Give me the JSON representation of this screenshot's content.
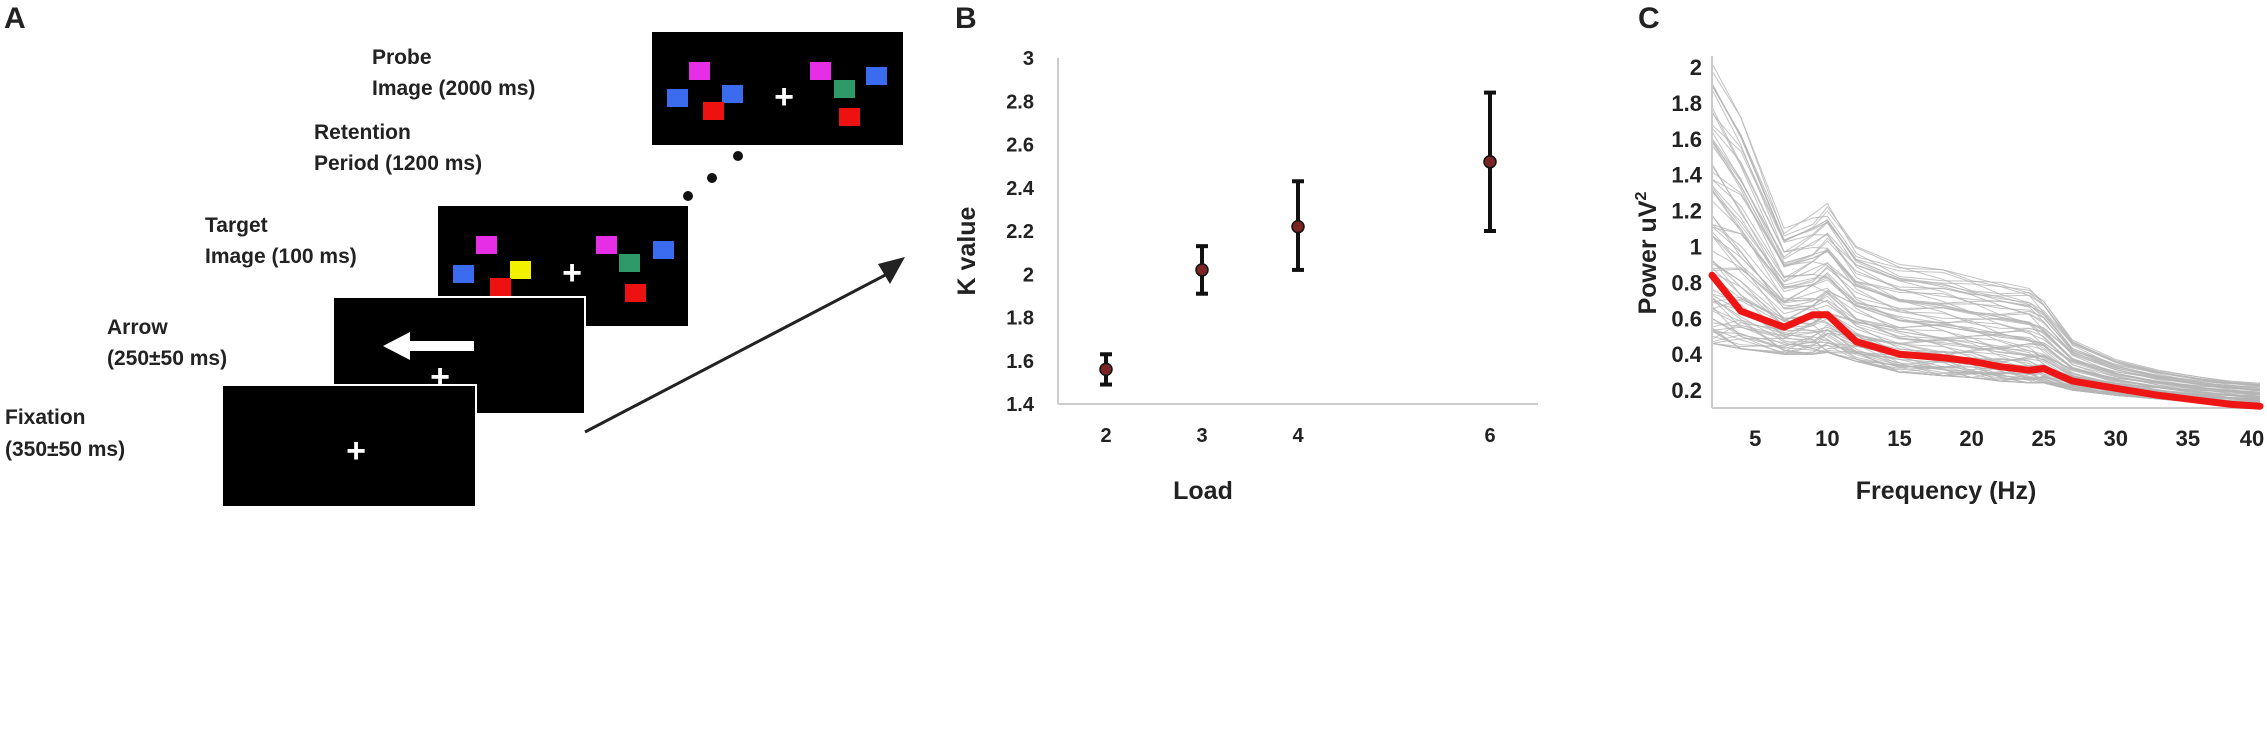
{
  "panels": {
    "a": {
      "letter": "A"
    },
    "b": {
      "letter": "B"
    },
    "c": {
      "letter": "C"
    }
  },
  "paradigm": {
    "probe_line1": "Probe",
    "probe_line2": "Image (2000 ms)",
    "retention_line1": "Retention",
    "retention_line2": "Period (1200 ms)",
    "target_line1": "Target",
    "target_line2": "Image (100 ms)",
    "arrow_line1": "Arrow",
    "arrow_line2": "(250±50 ms)",
    "fixation_line1": "Fixation",
    "fixation_line2": "(350±50 ms)",
    "fixation_symbol": "+",
    "colors": {
      "screen": "#000000",
      "magenta": "#e62ee6",
      "blue": "#3b6cf0",
      "red": "#ee1111",
      "yellow": "#f2f200",
      "green": "#2e9a6a",
      "white": "#ffffff"
    }
  },
  "chart_data": [
    {
      "type": "scatter",
      "panel": "B",
      "title": "",
      "xlabel": "Load",
      "ylabel": "K value",
      "x": [
        2,
        3,
        4,
        6
      ],
      "y": [
        1.56,
        2.02,
        2.22,
        2.52
      ],
      "error_low": [
        1.49,
        1.91,
        2.02,
        2.2
      ],
      "error_high": [
        1.63,
        2.13,
        2.43,
        2.84
      ],
      "xticks": [
        "2",
        "3",
        "4",
        "6"
      ],
      "yticks": [
        "1.4",
        "1.6",
        "1.8",
        "2",
        "2.2",
        "2.4",
        "2.6",
        "2.8",
        "3"
      ],
      "xlim": [
        1.5,
        6.5
      ],
      "ylim": [
        1.4,
        3.0
      ],
      "grid": false,
      "colors": {
        "marker": "#7a2424",
        "errorbar": "#111111",
        "axis": "#cccccc"
      }
    },
    {
      "type": "line",
      "panel": "C",
      "title": "",
      "xlabel": "Frequency (Hz)",
      "ylabel": "Power uV",
      "ylabel_superscript": "2",
      "xticks": [
        "5",
        "10",
        "15",
        "20",
        "25",
        "30",
        "35",
        "40"
      ],
      "yticks": [
        "0.2",
        "0.4",
        "0.6",
        "0.8",
        "1",
        "1.2",
        "1.4",
        "1.6",
        "1.8",
        "2"
      ],
      "xlim": [
        2,
        40
      ],
      "ylim": [
        0.1,
        2.05
      ],
      "grid": false,
      "mean": {
        "x": [
          2,
          4,
          7,
          9,
          10,
          12,
          15,
          18,
          20,
          22,
          24,
          25,
          27,
          30,
          33,
          36,
          38,
          40
        ],
        "y": [
          0.84,
          0.64,
          0.55,
          0.62,
          0.62,
          0.47,
          0.4,
          0.38,
          0.36,
          0.33,
          0.31,
          0.32,
          0.25,
          0.21,
          0.17,
          0.14,
          0.12,
          0.11
        ]
      },
      "individuals": {
        "description_count": 80,
        "envelope_low": [
          0.46,
          0.43,
          0.4,
          0.4,
          0.41,
          0.36,
          0.3,
          0.28,
          0.27,
          0.25,
          0.24,
          0.24,
          0.2,
          0.17,
          0.15,
          0.13,
          0.12,
          0.11
        ],
        "envelope_high": [
          2.02,
          1.72,
          1.1,
          1.18,
          1.24,
          1.0,
          0.9,
          0.87,
          0.83,
          0.8,
          0.77,
          0.7,
          0.48,
          0.37,
          0.31,
          0.27,
          0.25,
          0.24
        ]
      },
      "colors": {
        "mean": "#ee1515",
        "individual": "#b4b4b4",
        "axis": "#cccccc"
      }
    }
  ]
}
